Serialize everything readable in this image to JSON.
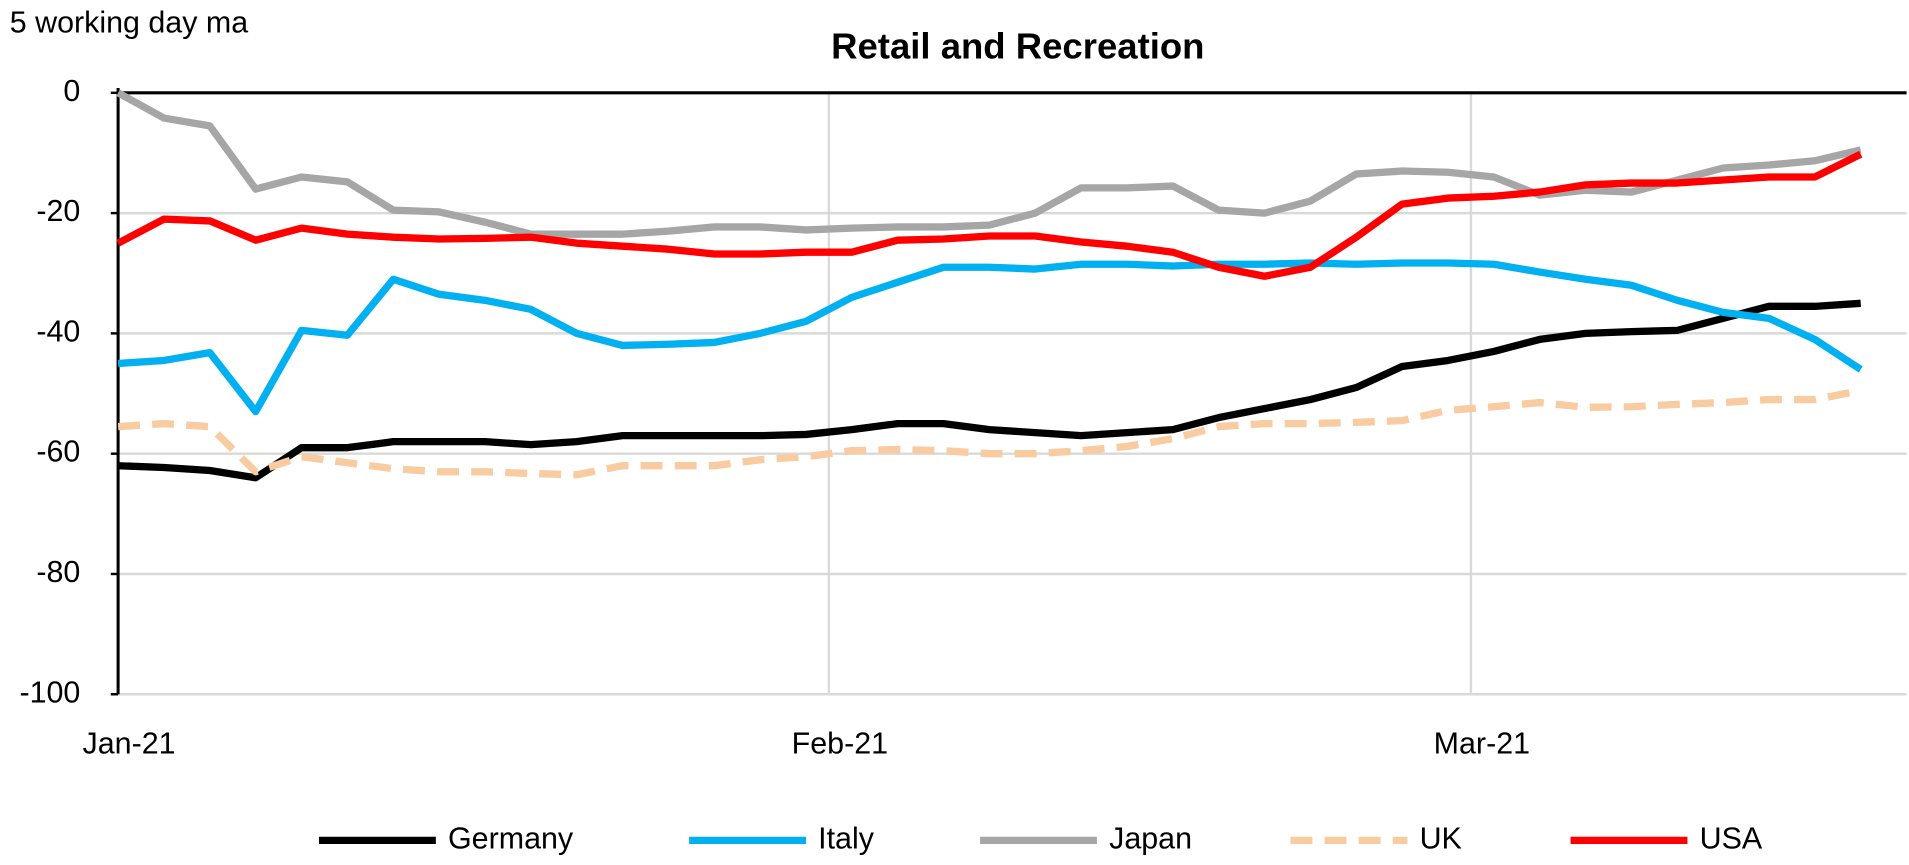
{
  "chart_data": {
    "type": "line",
    "title": "Retail and Recreation",
    "y_label": "5 working day ma",
    "x": [
      0,
      2,
      4,
      6,
      8,
      10,
      12,
      14,
      16,
      18,
      20,
      22,
      24,
      26,
      28,
      30,
      32,
      34,
      36,
      38,
      40,
      42,
      44,
      46,
      48,
      50,
      52,
      54,
      56,
      58,
      60,
      62,
      64,
      66,
      68,
      70,
      72,
      74,
      76
    ],
    "xlim": [
      0,
      78
    ],
    "xticks": [
      {
        "value": 0,
        "label": "Jan-21"
      },
      {
        "value": 31,
        "label": "Feb-21"
      },
      {
        "value": 59,
        "label": "Mar-21"
      }
    ],
    "ylim": [
      -100,
      0
    ],
    "yticks": [
      -100,
      -80,
      -60,
      -40,
      -20,
      0
    ],
    "grid": true,
    "series": [
      {
        "name": "Germany",
        "color": "#000000",
        "style": "solid",
        "values": [
          -62,
          -62.3,
          -62.8,
          -64,
          -59,
          -59,
          -58,
          -58,
          -58,
          -58.5,
          -58,
          -57,
          -57,
          -57,
          -57,
          -56.8,
          -56,
          -55,
          -55,
          -56,
          -56.5,
          -57,
          -56.5,
          -56,
          -54,
          -52.5,
          -51,
          -49,
          -45.5,
          -44.5,
          -43,
          -41,
          -40,
          -39.7,
          -39.5,
          -37.5,
          -35.5,
          -35.5,
          -35
        ]
      },
      {
        "name": "Italy",
        "color": "#00b0f0",
        "style": "solid",
        "values": [
          -45,
          -44.5,
          -43.2,
          -53,
          -39.5,
          -40.3,
          -31,
          -33.5,
          -34.5,
          -36,
          -40,
          -42,
          -41.8,
          -41.5,
          -40,
          -38,
          -34,
          -31.5,
          -29,
          -29,
          -29.3,
          -28.5,
          -28.5,
          -28.8,
          -28.5,
          -28.5,
          -28.3,
          -28.5,
          -28.3,
          -28.3,
          -28.5,
          -29.8,
          -31,
          -32,
          -34.5,
          -36.5,
          -37.5,
          -41,
          -46
        ]
      },
      {
        "name": "Japan",
        "color": "#a6a6a6",
        "style": "solid",
        "values": [
          0,
          -4.2,
          -5.5,
          -16,
          -14,
          -14.8,
          -19.5,
          -19.8,
          -21.5,
          -23.5,
          -23.5,
          -23.5,
          -23,
          -22.3,
          -22.3,
          -22.8,
          -22.5,
          -22.3,
          -22.3,
          -22,
          -20,
          -15.8,
          -15.8,
          -15.5,
          -19.5,
          -20,
          -18,
          -13.5,
          -13,
          -13.2,
          -14,
          -17,
          -16.2,
          -16.5,
          -14.5,
          -12.5,
          -12,
          -11.3,
          -9.5
        ]
      },
      {
        "name": "UK",
        "color": "#f8cba0",
        "style": "dashed",
        "values": [
          -55.5,
          -55,
          -55.5,
          -63,
          -60.5,
          -61.5,
          -62.5,
          -63,
          -63,
          -63.3,
          -63.5,
          -62,
          -62,
          -62,
          -61,
          -60.5,
          -59.5,
          -59.3,
          -59.5,
          -60,
          -60,
          -59.5,
          -58.8,
          -57.5,
          -55.5,
          -55,
          -55,
          -54.8,
          -54.5,
          -52.8,
          -52.2,
          -51.5,
          -52.3,
          -52.2,
          -51.8,
          -51.5,
          -51,
          -51,
          -49.5
        ]
      },
      {
        "name": "USA",
        "color": "#ff0000",
        "style": "solid",
        "values": [
          -25,
          -21,
          -21.3,
          -24.5,
          -22.5,
          -23.5,
          -24,
          -24.3,
          -24.2,
          -24,
          -25,
          -25.5,
          -26,
          -26.8,
          -26.8,
          -26.5,
          -26.5,
          -24.5,
          -24.3,
          -23.8,
          -23.8,
          -24.8,
          -25.5,
          -26.5,
          -29,
          -30.5,
          -29,
          -24,
          -18.5,
          -17.5,
          -17.2,
          -16.5,
          -15.3,
          -15,
          -15,
          -14.5,
          -14,
          -14,
          -10.2
        ]
      }
    ]
  }
}
